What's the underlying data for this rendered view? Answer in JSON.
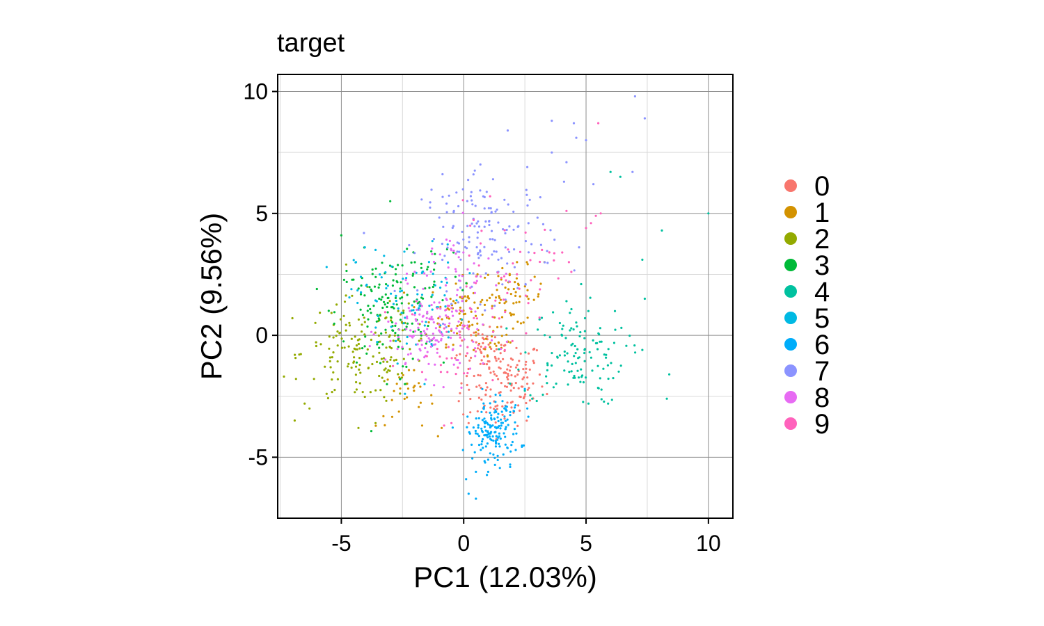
{
  "chart_data": {
    "type": "scatter",
    "title": "target",
    "xlabel": "PC1 (12.03%)",
    "ylabel": "PC2 (9.56%)",
    "xlim": [
      -7.6,
      11.0
    ],
    "ylim": [
      -7.5,
      10.7
    ],
    "x_ticks": [
      {
        "value": -5,
        "label": "-5"
      },
      {
        "value": 0,
        "label": "0"
      },
      {
        "value": 5,
        "label": "5"
      },
      {
        "value": 10,
        "label": "10"
      }
    ],
    "y_ticks": [
      {
        "value": -5,
        "label": "-5"
      },
      {
        "value": 0,
        "label": "0"
      },
      {
        "value": 5,
        "label": "5"
      },
      {
        "value": 10,
        "label": "10"
      }
    ],
    "grid": true,
    "legend_position": "right",
    "series": [
      {
        "name": "0",
        "color": "#F8766D",
        "clusters": [
          {
            "cx": 1.6,
            "cy": -1.9,
            "sx": 0.85,
            "sy": 0.9,
            "n": 150
          },
          {
            "cx": 0.8,
            "cy": -0.4,
            "sx": 0.5,
            "sy": 0.5,
            "n": 25
          }
        ],
        "points": [
          [
            -0.2,
            -2.7
          ],
          [
            0.2,
            -3.6
          ],
          [
            2.0,
            -1.0
          ]
        ]
      },
      {
        "name": "1",
        "color": "#D39200",
        "clusters": [
          {
            "cx": 0.0,
            "cy": 1.0,
            "sx": 0.7,
            "sy": 0.65,
            "n": 80
          },
          {
            "cx": 2.0,
            "cy": 1.6,
            "sx": 0.65,
            "sy": 0.6,
            "n": 55
          },
          {
            "cx": -2.4,
            "cy": -2.6,
            "sx": 0.6,
            "sy": 0.6,
            "n": 28
          },
          {
            "cx": 1.2,
            "cy": -0.3,
            "sx": 0.5,
            "sy": 0.5,
            "n": 15
          }
        ],
        "points": [
          [
            3.3,
            3.0
          ],
          [
            2.9,
            2.4
          ],
          [
            -1.7,
            -3.7
          ],
          [
            -0.9,
            -3.8
          ]
        ]
      },
      {
        "name": "2",
        "color": "#93AA00",
        "clusters": [
          {
            "cx": -4.3,
            "cy": -0.7,
            "sx": 1.15,
            "sy": 1.1,
            "n": 130
          },
          {
            "cx": -2.6,
            "cy": -0.6,
            "sx": 0.6,
            "sy": 0.8,
            "n": 30
          }
        ],
        "points": [
          [
            -7.0,
            0.7
          ],
          [
            -6.9,
            -0.8
          ],
          [
            -6.5,
            -2.8
          ],
          [
            -6.3,
            -3.0
          ],
          [
            -5.6,
            -2.4
          ],
          [
            -4.3,
            -3.8
          ],
          [
            -3.6,
            -3.6
          ]
        ]
      },
      {
        "name": "3",
        "color": "#00BA38",
        "clusters": [
          {
            "cx": -3.2,
            "cy": 0.9,
            "sx": 1.0,
            "sy": 1.2,
            "n": 125
          },
          {
            "cx": -1.6,
            "cy": 2.7,
            "sx": 0.8,
            "sy": 0.9,
            "n": 30
          }
        ],
        "points": [
          [
            -3.0,
            5.5
          ],
          [
            -5.0,
            4.1
          ],
          [
            -6.0,
            1.9
          ],
          [
            -2.6,
            -1.8
          ],
          [
            -2.4,
            -2.0
          ]
        ]
      },
      {
        "name": "4",
        "color": "#00C19F",
        "clusters": [
          {
            "cx": 4.5,
            "cy": -0.8,
            "sx": 1.05,
            "sy": 1.0,
            "n": 120
          }
        ],
        "points": [
          [
            10.0,
            5.0
          ],
          [
            8.1,
            4.3
          ],
          [
            7.3,
            3.1
          ],
          [
            7.4,
            1.5
          ],
          [
            7.3,
            -0.6
          ],
          [
            8.4,
            -1.6
          ],
          [
            8.3,
            -2.6
          ],
          [
            6.4,
            6.5
          ],
          [
            6.0,
            6.7
          ],
          [
            5.9,
            -2.8
          ],
          [
            5.1,
            -2.8
          ],
          [
            4.2,
            1.4
          ],
          [
            4.8,
            2.1
          ],
          [
            2.8,
            -2.6
          ]
        ]
      },
      {
        "name": "5",
        "color": "#00B9E3",
        "clusters": [
          {
            "cx": -2.2,
            "cy": 1.4,
            "sx": 1.1,
            "sy": 1.15,
            "n": 85
          }
        ],
        "points": [
          [
            -5.6,
            2.8
          ],
          [
            -4.4,
            3.0
          ],
          [
            -4.2,
            2.4
          ],
          [
            -3.6,
            3.5
          ],
          [
            -2.6,
            1.8
          ],
          [
            -2.4,
            -2.4
          ],
          [
            -1.6,
            -2.0
          ]
        ]
      },
      {
        "name": "6",
        "color": "#00ADFA",
        "clusters": [
          {
            "cx": 1.2,
            "cy": -4.0,
            "sx": 0.55,
            "sy": 0.55,
            "n": 135
          },
          {
            "cx": 1.4,
            "cy": -3.1,
            "sx": 0.4,
            "sy": 0.4,
            "n": 20
          }
        ],
        "points": [
          [
            0.2,
            -6.5
          ],
          [
            0.5,
            -6.7
          ],
          [
            0.1,
            -5.9
          ],
          [
            0.5,
            -5.6
          ],
          [
            1.0,
            -5.6
          ],
          [
            1.9,
            -5.4
          ],
          [
            1.9,
            -5.3
          ],
          [
            1.0,
            -5.1
          ],
          [
            0.7,
            -4.7
          ],
          [
            2.6,
            -3.0
          ],
          [
            2.5,
            -2.2
          ]
        ]
      },
      {
        "name": "7",
        "color": "#8B93FF",
        "clusters": [
          {
            "cx": 1.0,
            "cy": 4.0,
            "sx": 1.35,
            "sy": 1.25,
            "n": 145
          }
        ],
        "points": [
          [
            7.0,
            9.8
          ],
          [
            7.4,
            8.9
          ],
          [
            3.6,
            8.8
          ],
          [
            4.5,
            8.7
          ],
          [
            1.8,
            8.4
          ],
          [
            4.6,
            8.1
          ],
          [
            5.0,
            8.0
          ],
          [
            3.6,
            7.5
          ],
          [
            4.2,
            7.1
          ],
          [
            6.9,
            6.7
          ],
          [
            5.3,
            6.2
          ],
          [
            4.1,
            6.3
          ],
          [
            2.6,
            6.9
          ],
          [
            1.2,
            6.4
          ],
          [
            0.4,
            6.6
          ],
          [
            0.8,
            5.7
          ],
          [
            -0.4,
            5.1
          ],
          [
            -0.7,
            5.4
          ]
        ]
      },
      {
        "name": "8",
        "color": "#E76BF3",
        "clusters": [
          {
            "cx": -1.2,
            "cy": 0.1,
            "sx": 1.0,
            "sy": 0.9,
            "n": 150
          },
          {
            "cx": -0.3,
            "cy": 2.7,
            "sx": 0.9,
            "sy": 0.9,
            "n": 35
          }
        ],
        "points": [
          [
            -2.0,
            2.6
          ],
          [
            -0.4,
            -1.2
          ]
        ]
      },
      {
        "name": "9",
        "color": "#FF62BC",
        "clusters": [
          {
            "cx": 1.6,
            "cy": 2.3,
            "sx": 1.1,
            "sy": 1.3,
            "n": 50
          },
          {
            "cx": -0.5,
            "cy": -0.2,
            "sx": 0.9,
            "sy": 0.9,
            "n": 35
          }
        ],
        "points": [
          [
            5.5,
            8.7
          ],
          [
            5.6,
            5.0
          ],
          [
            5.4,
            4.9
          ],
          [
            5.2,
            4.6
          ],
          [
            5.0,
            4.4
          ],
          [
            4.2,
            5.1
          ],
          [
            3.5,
            3.4
          ],
          [
            3.2,
            3.5
          ],
          [
            4.4,
            2.6
          ],
          [
            4.3,
            3.0
          ],
          [
            -0.8,
            -3.7
          ],
          [
            -0.5,
            -3.6
          ]
        ]
      }
    ]
  }
}
